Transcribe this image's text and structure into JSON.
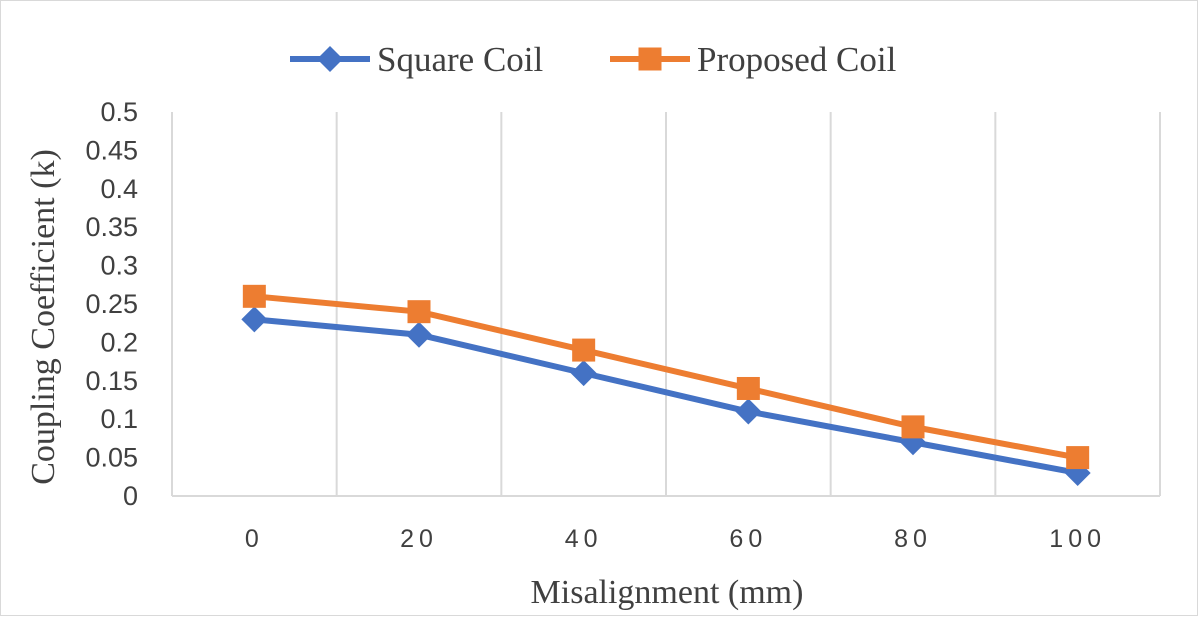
{
  "chart_data": {
    "type": "line",
    "title": "",
    "xlabel": "Misalignment (mm)",
    "ylabel": "Coupling Coefficient (k)",
    "x": [
      0,
      20,
      40,
      60,
      80,
      100
    ],
    "x_tick_labels": [
      "0",
      "20",
      "40",
      "60",
      "80",
      "100"
    ],
    "y_tick_labels": [
      "0",
      "0.05",
      "0.1",
      "0.15",
      "0.2",
      "0.25",
      "0.3",
      "0.35",
      "0.4",
      "0.45",
      "0.5"
    ],
    "ylim": [
      0,
      0.5
    ],
    "grid": "vertical",
    "legend": "top",
    "series": [
      {
        "name": "Square Coil",
        "values": [
          0.23,
          0.21,
          0.16,
          0.11,
          0.07,
          0.03
        ],
        "color": "#4472c4",
        "marker": "diamond"
      },
      {
        "name": "Proposed Coil",
        "values": [
          0.26,
          0.24,
          0.19,
          0.14,
          0.09,
          0.05
        ],
        "color": "#ed7d31",
        "marker": "square"
      }
    ]
  }
}
